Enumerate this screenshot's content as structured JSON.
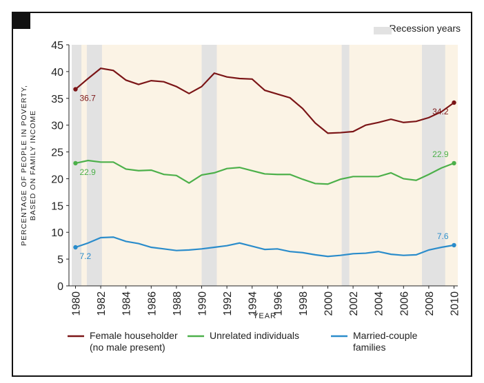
{
  "chart_data": {
    "type": "line",
    "ylabel": [
      "PERCENTAGE OF PEOPLE IN POVERTY,",
      "BASED ON FAMILY INCOME"
    ],
    "xlabel": "YEAR",
    "recession_label": "Recession years",
    "recession_color": "#e2e2e2",
    "recessions": [
      [
        1979.7,
        1980.47
      ],
      [
        1980.9,
        1982.1
      ],
      [
        1990.0,
        1991.2
      ],
      [
        2001.1,
        2001.7
      ],
      [
        2007.46,
        2009.3
      ]
    ],
    "x": [
      1980,
      1981,
      1982,
      1983,
      1984,
      1985,
      1986,
      1987,
      1988,
      1989,
      1990,
      1991,
      1992,
      1993,
      1994,
      1995,
      1996,
      1997,
      1998,
      1999,
      2000,
      2001,
      2002,
      2003,
      2004,
      2005,
      2006,
      2007,
      2008,
      2009,
      2010
    ],
    "series": [
      {
        "name": "Female householder\n(no male present)",
        "color": "#7b1517",
        "values": [
          36.7,
          38.7,
          40.6,
          40.2,
          38.4,
          37.6,
          38.3,
          38.1,
          37.2,
          35.9,
          37.2,
          39.7,
          39.0,
          38.7,
          38.6,
          36.5,
          35.8,
          35.1,
          33.1,
          30.4,
          28.5,
          28.6,
          28.8,
          30.0,
          30.5,
          31.1,
          30.5,
          30.7,
          31.4,
          32.5,
          34.2
        ]
      },
      {
        "name": "Unrelated individuals",
        "color": "#4cb04a",
        "values": [
          22.9,
          23.4,
          23.1,
          23.1,
          21.8,
          21.5,
          21.6,
          20.8,
          20.6,
          19.2,
          20.7,
          21.1,
          21.9,
          22.1,
          21.5,
          20.9,
          20.8,
          20.8,
          19.9,
          19.1,
          19.0,
          19.9,
          20.4,
          20.4,
          20.4,
          21.1,
          20.0,
          19.7,
          20.8,
          22.0,
          22.9
        ]
      },
      {
        "name": "Married-couple\nfamilies",
        "color": "#2a8ccb",
        "values": [
          7.2,
          8.0,
          9.0,
          9.1,
          8.3,
          7.9,
          7.2,
          6.9,
          6.6,
          6.7,
          6.9,
          7.2,
          7.5,
          8.0,
          7.4,
          6.8,
          6.9,
          6.4,
          6.2,
          5.8,
          5.5,
          5.7,
          6.0,
          6.1,
          6.4,
          5.9,
          5.7,
          5.8,
          6.7,
          7.2,
          7.6
        ]
      }
    ],
    "xlim": [
      1979.7,
      2010.3
    ],
    "xticks": [
      1980,
      1982,
      1984,
      1986,
      1988,
      1990,
      1992,
      1994,
      1996,
      1998,
      2000,
      2002,
      2004,
      2006,
      2008,
      2010
    ],
    "ylim": [
      0,
      45
    ],
    "yticks": [
      0,
      5,
      10,
      15,
      20,
      25,
      30,
      35,
      40,
      45
    ]
  }
}
